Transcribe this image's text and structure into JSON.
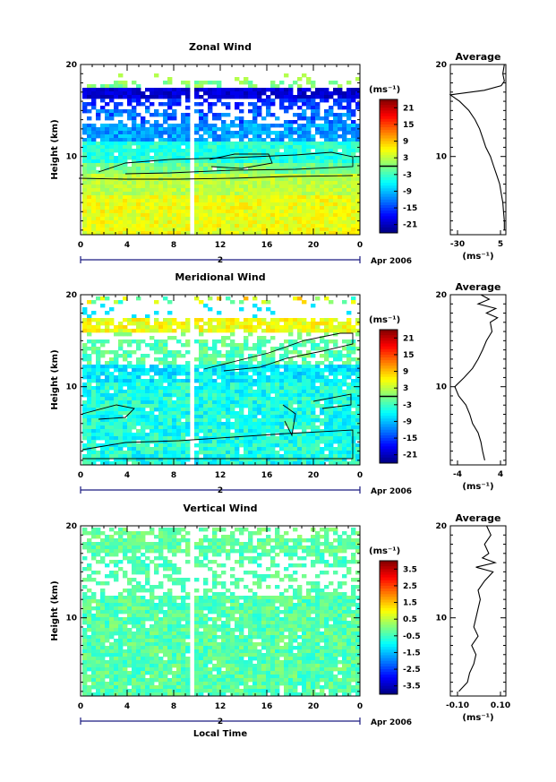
{
  "figure": {
    "date_label": "Apr 2006",
    "xlabel": "Local Time",
    "ylabel": "Height (km)",
    "colorbar_unit": "(ms⁻¹)",
    "profile_title": "Average",
    "profile_unit": "(ms⁻¹)",
    "x_tick_labels": [
      "0",
      "4",
      "8",
      "12",
      "16",
      "20",
      "0"
    ],
    "y_tick_labels": [
      "10",
      "20"
    ],
    "day_marker": "2"
  },
  "chart_data": [
    {
      "type": "heatmap",
      "title": "Zonal Wind",
      "xlabel": "",
      "ylabel": "Height (km)",
      "xlim": [
        0,
        24
      ],
      "ylim": [
        1.5,
        20
      ],
      "colorbar": {
        "min": -24,
        "max": 24,
        "ticks": [
          "21",
          "15",
          "9",
          "3",
          "-3",
          "-9",
          "-15",
          "-21"
        ],
        "zero_line": true
      },
      "data_gap_local_time": [
        9.1,
        9.7
      ],
      "profile": {
        "title": "Average",
        "xlim": [
          -30,
          6
        ],
        "xtick_labels": [
          "-30",
          "5"
        ],
        "height_km": [
          2,
          3,
          4,
          5,
          6,
          7,
          8,
          9,
          10,
          11,
          12,
          13,
          14,
          15,
          16,
          16.7,
          17.2,
          17.7,
          18.2,
          19,
          20
        ],
        "wind_ms": [
          5,
          5,
          4.5,
          4,
          3,
          2,
          0,
          -2,
          -4,
          -7,
          -9,
          -11,
          -14,
          -18,
          -24,
          -30,
          -8,
          3,
          5,
          4,
          5
        ]
      }
    },
    {
      "type": "heatmap",
      "title": "Meridional Wind",
      "xlabel": "",
      "ylabel": "Height (km)",
      "xlim": [
        0,
        24
      ],
      "ylim": [
        1.5,
        20
      ],
      "colorbar": {
        "min": -24,
        "max": 24,
        "ticks": [
          "21",
          "15",
          "9",
          "3",
          "-3",
          "-9",
          "-15",
          "-21"
        ],
        "zero_line": true
      },
      "data_gap_local_time": [
        9.1,
        9.7
      ],
      "profile": {
        "title": "Average",
        "xlim": [
          -5,
          5
        ],
        "xtick_labels": [
          "-4",
          "4"
        ],
        "height_km": [
          2,
          3,
          4,
          5,
          6,
          7,
          8,
          9,
          10,
          11,
          12,
          13,
          14,
          15,
          16,
          17,
          17.5,
          18,
          18.5,
          19,
          19.5,
          20
        ],
        "wind_ms": [
          1.2,
          0.8,
          0.5,
          0,
          -1,
          -1.5,
          -2.2,
          -3.5,
          -4.2,
          -2.5,
          -1,
          0,
          0.8,
          1.5,
          2.5,
          2.2,
          3.5,
          1.5,
          3.2,
          0,
          2,
          0.5
        ]
      }
    },
    {
      "type": "heatmap",
      "title": "Vertical Wind",
      "xlabel": "Local Time",
      "ylabel": "Height (km)",
      "xlim": [
        0,
        24
      ],
      "ylim": [
        1.5,
        20
      ],
      "colorbar": {
        "min": -4,
        "max": 4,
        "ticks": [
          "3.5",
          "2.5",
          "1.5",
          "0.5",
          "-0.5",
          "-1.5",
          "-2.5",
          "-3.5"
        ],
        "zero_line": false
      },
      "data_gap_local_time": [
        9.1,
        9.7
      ],
      "profile": {
        "title": "Average",
        "xlim": [
          -0.14,
          0.12
        ],
        "xtick_labels": [
          "-0.10",
          "0.10"
        ],
        "height_km": [
          2,
          3,
          4,
          5,
          6,
          7,
          8,
          9,
          10,
          11,
          12,
          13,
          14,
          15,
          15.5,
          16,
          16.5,
          17,
          18,
          19,
          20
        ],
        "wind_ms": [
          -0.1,
          -0.06,
          -0.05,
          -0.03,
          -0.02,
          -0.04,
          -0.01,
          -0.03,
          -0.02,
          -0.01,
          0,
          -0.01,
          0.02,
          0.06,
          -0.02,
          0.07,
          0.01,
          0.04,
          0.02,
          0.05,
          0.03
        ]
      }
    }
  ]
}
